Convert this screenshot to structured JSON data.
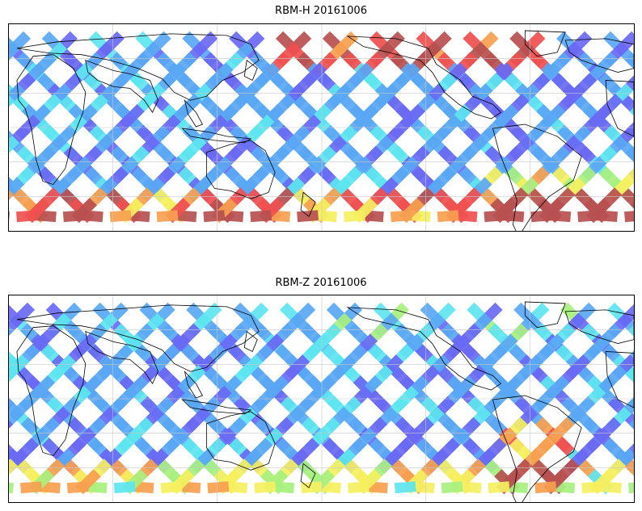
{
  "panels": [
    {
      "title": "RBM-H 20161006",
      "variable": "RBM-H",
      "date": "20161006",
      "hotspot_level": "high"
    },
    {
      "title": "RBM-Z 20161006",
      "variable": "RBM-Z",
      "date": "20161006",
      "hotspot_level": "low"
    }
  ],
  "colormap": [
    "#6a6af5",
    "#5aa8f5",
    "#5ee6f0",
    "#a8f080",
    "#f6f060",
    "#f8a050",
    "#f05050",
    "#b85050"
  ],
  "colors": {
    "coastline": "#000000",
    "gridline": "#c8c8c8",
    "frame": "#000000"
  },
  "map_style": {
    "projection": "equirectangular",
    "grid": true,
    "coastlines": true,
    "data_pattern": "satellite ground-track swaths"
  }
}
